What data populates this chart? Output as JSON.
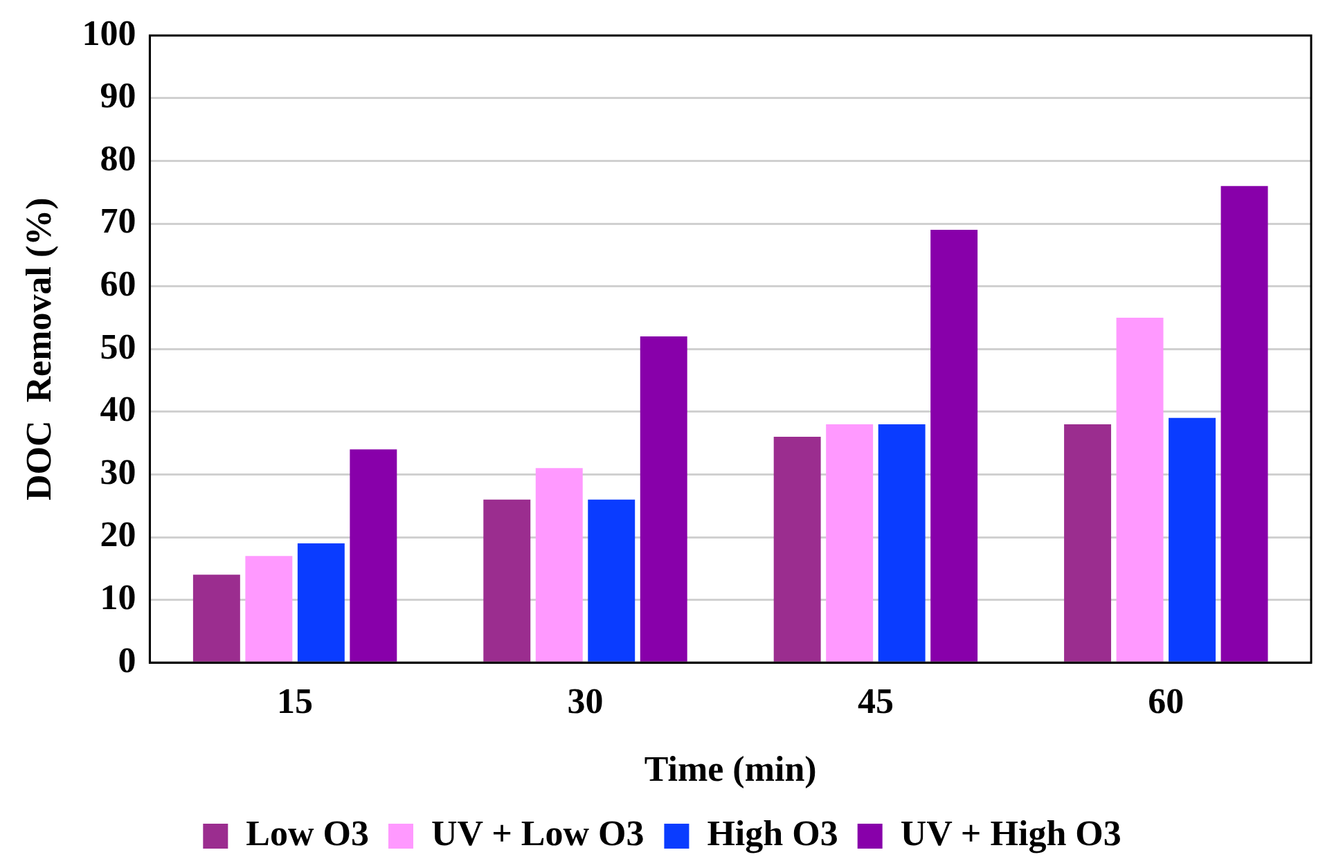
{
  "chart_data": {
    "type": "bar",
    "xlabel": "Time (min)",
    "ylabel": "DOC  Removal (%)",
    "categories": [
      "15",
      "30",
      "45",
      "60"
    ],
    "series": [
      {
        "name": "Low O3",
        "color": "#9b2d8f",
        "values": [
          14,
          26,
          36,
          38
        ]
      },
      {
        "name": "UV + Low O3",
        "color": "#ff99ff",
        "values": [
          17,
          31,
          38,
          55
        ]
      },
      {
        "name": "High O3",
        "color": "#0a3cff",
        "values": [
          19,
          26,
          38,
          39
        ]
      },
      {
        "name": "UV + High O3",
        "color": "#8800aa",
        "values": [
          34,
          52,
          69,
          76
        ]
      }
    ],
    "ylim": [
      0,
      100
    ],
    "yticks": [
      0,
      10,
      20,
      30,
      40,
      50,
      60,
      70,
      80,
      90,
      100
    ],
    "grid": "y",
    "legend": "bottom"
  }
}
